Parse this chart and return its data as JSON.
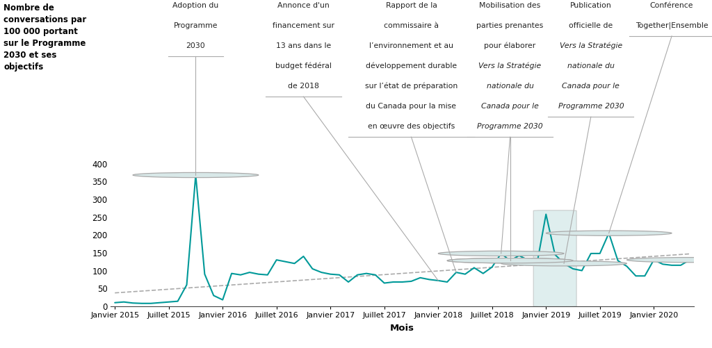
{
  "title_y": "Nombre de\nconversations par\n100 000 portant\nsur le Programme\n2030 et ses\nobjectifs",
  "xlabel": "Mois",
  "line_color": "#009999",
  "trend_color": "#aaaaaa",
  "background_color": "#ffffff",
  "values": [
    10,
    12,
    9,
    8,
    8,
    10,
    12,
    14,
    60,
    368,
    90,
    30,
    18,
    92,
    88,
    95,
    90,
    88,
    130,
    125,
    120,
    140,
    105,
    95,
    90,
    88,
    68,
    88,
    92,
    88,
    65,
    68,
    68,
    70,
    80,
    75,
    72,
    68,
    95,
    90,
    108,
    92,
    110,
    148,
    128,
    142,
    130,
    120,
    258,
    145,
    120,
    105,
    100,
    148,
    148,
    205,
    128,
    112,
    85,
    85,
    130,
    118,
    115,
    115,
    130
  ],
  "ylim": [
    0,
    410
  ],
  "yticks": [
    0,
    50,
    100,
    150,
    200,
    250,
    300,
    350,
    400
  ],
  "xtick_labels": [
    "Janvier 2015",
    "Juillet 2015",
    "Janvier 2016",
    "Juillet 2016",
    "Janvier 2017",
    "Juillet 2017",
    "Janvier 2018",
    "Juillet 2018",
    "Janvier 2019",
    "Juillet 2019",
    "Janvier 2020"
  ],
  "xtick_positions": [
    0,
    6,
    12,
    18,
    24,
    30,
    36,
    42,
    48,
    54,
    60
  ]
}
